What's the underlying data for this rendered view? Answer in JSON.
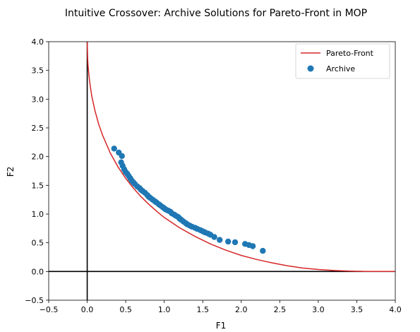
{
  "chart_data": {
    "type": "scatter",
    "title": "Intuitive Crossover: Archive Solutions for Pareto-Front in MOP",
    "xlabel": "F1",
    "ylabel": "F2",
    "xlim": [
      -0.5,
      4.0
    ],
    "ylim": [
      -0.5,
      4.0
    ],
    "xticks": [
      -0.5,
      0.0,
      0.5,
      1.0,
      1.5,
      2.0,
      2.5,
      3.0,
      3.5,
      4.0
    ],
    "yticks": [
      -0.5,
      0.0,
      0.5,
      1.0,
      1.5,
      2.0,
      2.5,
      3.0,
      3.5,
      4.0
    ],
    "xtick_labels": [
      "−0.5",
      "0.0",
      "0.5",
      "1.0",
      "1.5",
      "2.0",
      "2.5",
      "3.0",
      "3.5",
      "4.0"
    ],
    "ytick_labels": [
      "−0.5",
      "0.0",
      "0.5",
      "1.0",
      "1.5",
      "2.0",
      "2.5",
      "3.0",
      "3.5",
      "4.0"
    ],
    "grid": false,
    "reference_lines": {
      "x": 0,
      "y": 0,
      "color": "#000000"
    },
    "legend_position": "top-right",
    "series": [
      {
        "name": "Pareto-Front",
        "kind": "line",
        "color": "#d62728",
        "x": [
          0.0,
          0.005,
          0.01,
          0.02,
          0.04,
          0.06,
          0.1,
          0.15,
          0.2,
          0.3,
          0.4,
          0.5,
          0.6,
          0.7,
          0.8,
          0.9,
          1.0,
          1.2,
          1.4,
          1.6,
          1.8,
          2.0,
          2.2,
          2.4,
          2.6,
          2.8,
          3.0,
          3.2,
          3.4,
          3.6,
          3.8,
          4.0
        ],
        "y": [
          4.0,
          3.73,
          3.61,
          3.45,
          3.22,
          3.05,
          2.8,
          2.56,
          2.37,
          2.06,
          1.82,
          1.62,
          1.45,
          1.3,
          1.17,
          1.05,
          0.94,
          0.76,
          0.61,
          0.48,
          0.37,
          0.28,
          0.21,
          0.15,
          0.1,
          0.06,
          0.035,
          0.018,
          0.007,
          0.002,
          0.0,
          0.0
        ]
      },
      {
        "name": "Archive",
        "kind": "scatter",
        "color": "#1f77b4",
        "x": [
          0.35,
          0.41,
          0.45,
          0.44,
          0.46,
          0.48,
          0.5,
          0.52,
          0.54,
          0.56,
          0.58,
          0.6,
          0.62,
          0.65,
          0.68,
          0.7,
          0.72,
          0.75,
          0.78,
          0.8,
          0.82,
          0.85,
          0.88,
          0.9,
          0.93,
          0.95,
          0.98,
          1.0,
          1.02,
          1.05,
          1.08,
          1.1,
          1.13,
          1.15,
          1.18,
          1.2,
          1.22,
          1.25,
          1.28,
          1.3,
          1.33,
          1.36,
          1.4,
          1.43,
          1.47,
          1.5,
          1.53,
          1.57,
          1.6,
          1.65,
          1.72,
          1.83,
          1.92,
          2.05,
          2.1,
          2.15,
          2.28
        ],
        "y": [
          2.14,
          2.07,
          2.01,
          1.9,
          1.84,
          1.78,
          1.73,
          1.7,
          1.66,
          1.62,
          1.58,
          1.55,
          1.52,
          1.48,
          1.45,
          1.42,
          1.4,
          1.37,
          1.33,
          1.3,
          1.28,
          1.25,
          1.22,
          1.2,
          1.17,
          1.15,
          1.12,
          1.1,
          1.08,
          1.06,
          1.04,
          1.01,
          0.99,
          0.97,
          0.95,
          0.92,
          0.9,
          0.87,
          0.84,
          0.82,
          0.8,
          0.78,
          0.76,
          0.74,
          0.72,
          0.7,
          0.68,
          0.66,
          0.64,
          0.6,
          0.55,
          0.52,
          0.51,
          0.48,
          0.46,
          0.44,
          0.36
        ]
      }
    ]
  }
}
